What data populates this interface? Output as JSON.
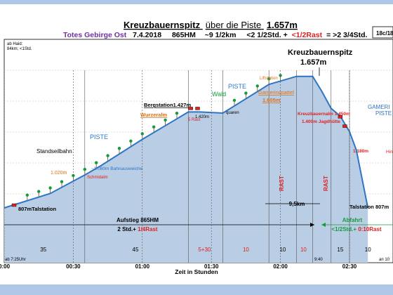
{
  "header": {
    "title_main": "Kreuzbauernspitz",
    "title_mid": "über die Piste",
    "title_height": "1.657m",
    "subtitle_region": "Totes Gebirge Ost",
    "subtitle_date": "7.4.2018",
    "subtitle_hm": "865HM",
    "subtitle_km": "~9 1/2km",
    "subtitle_time_a": "<2 1/2Std. +",
    "subtitle_time_rast": "<1/2Rast",
    "subtitle_time_b": "= >2 3/4Std.",
    "badge": "18c/18"
  },
  "note": {
    "line1": "ab Haid:",
    "line2": "84km; <1Std."
  },
  "colors": {
    "fill": "#b9cde5",
    "line": "#2e75c4",
    "orange": "#e0700f",
    "red": "#e02020",
    "green": "#159a3c",
    "purple": "#7030a0",
    "blue_text": "#2e75c4"
  },
  "chart_data": {
    "type": "area",
    "xlabel": "Zeit in Stunden",
    "x_ticks": [
      "0:00",
      "00:30",
      "01:00",
      "01:30",
      "02:00",
      "02:30"
    ],
    "profile": [
      {
        "t": 0,
        "h": 807
      },
      {
        "t": 20,
        "h": 900
      },
      {
        "t": 35,
        "h": 1020
      },
      {
        "t": 42,
        "h": 1080
      },
      {
        "t": 60,
        "h": 1250
      },
      {
        "t": 80,
        "h": 1427
      },
      {
        "t": 85,
        "h": 1427
      },
      {
        "t": 95,
        "h": 1420
      },
      {
        "t": 115,
        "h": 1605
      },
      {
        "t": 127,
        "h": 1657
      },
      {
        "t": 134,
        "h": 1657
      },
      {
        "t": 138,
        "h": 1560
      },
      {
        "t": 142,
        "h": 1450
      },
      {
        "t": 146,
        "h": 1400
      },
      {
        "t": 150,
        "h": 1300
      },
      {
        "t": 153,
        "h": 1180
      },
      {
        "t": 158,
        "h": 807
      }
    ],
    "segment_times": [
      "35",
      "45",
      "5+30",
      "10",
      "10",
      "10",
      "15",
      "10"
    ],
    "labels": {
      "summit_name": "Kreuzbauernspitz",
      "summit_height": "1.657m",
      "talstation_start": "807mTalstation",
      "talstation_end": "Talstation 807m",
      "standseilbahn": "Standseilbahn",
      "piste_1": "PISTE",
      "piste_2": "PISTE",
      "gamering_piste_1": "GAMERI",
      "gamering_piste_2": "PISTE",
      "wald": "Wald",
      "bergstation": "Bergstation1.427m",
      "wurzeralm": "Wurzeralm",
      "rast": "5 Rast",
      "quaren": "quaren",
      "h1420": "1.420m",
      "h1020": "1.020m",
      "bahnausweiche": "~1.080m Bahnausweiche",
      "schmidalm": "Schmidalm",
      "liftstation": "Liftstation",
      "gameringsattel_1": "Gameringsattel",
      "gameringsattel_2": "1.605m",
      "kreuzbauernalm": "Kreuzbauernalm 1.450m",
      "jagdhuette": "1.400m Jagdhütte",
      "h1180": "1.180m",
      "hin": "Hin",
      "rast_v1": "RAST",
      "rast_v2": "RAST",
      "distance": "9,5km",
      "aufstieg_1": "Aufstieg 865HM",
      "aufstieg_2": "2 Std.+",
      "aufstieg_rast": "1/4Rast",
      "abfahrt": "Abfahrt",
      "abfahrt_2": "<1/2Std.+",
      "abfahrt_rast": "0:10Rast",
      "time_start": "ab 7:25Uhr",
      "time_940": "9:40",
      "time_end": "an 10"
    }
  }
}
